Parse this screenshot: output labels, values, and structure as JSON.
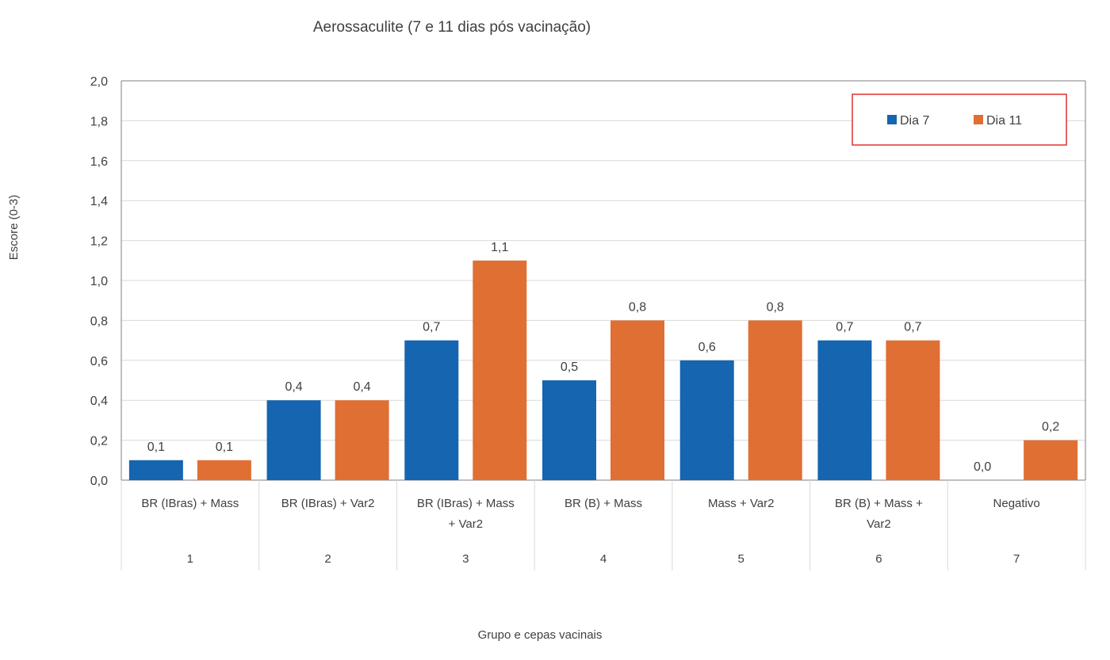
{
  "chart_data": {
    "type": "bar",
    "title": "Aerossaculite (7 e 11 dias pós vacinação)",
    "xlabel": "Grupo e cepas vacinais",
    "ylabel": "Escore (0-3)",
    "ylim": [
      0,
      2.0
    ],
    "ytick_step": 0.2,
    "grid": true,
    "legend_position": "top-right",
    "categories": [
      {
        "label_lines": [
          "BR (IBras) + Mass"
        ],
        "group": "1"
      },
      {
        "label_lines": [
          "BR (IBras) + Var2"
        ],
        "group": "2"
      },
      {
        "label_lines": [
          "BR (IBras) + Mass",
          "+ Var2"
        ],
        "group": "3"
      },
      {
        "label_lines": [
          "BR (B) + Mass"
        ],
        "group": "4"
      },
      {
        "label_lines": [
          "Mass + Var2"
        ],
        "group": "5"
      },
      {
        "label_lines": [
          "BR (B) + Mass +",
          "Var2"
        ],
        "group": "6"
      },
      {
        "label_lines": [
          "Negativo"
        ],
        "group": "7"
      }
    ],
    "series": [
      {
        "name": "Dia 7",
        "color": "#1565b0",
        "values": [
          0.1,
          0.4,
          0.7,
          0.5,
          0.6,
          0.7,
          0.0
        ]
      },
      {
        "name": "Dia 11",
        "color": "#e06f33",
        "values": [
          0.1,
          0.4,
          1.1,
          0.8,
          0.8,
          0.7,
          0.2
        ]
      }
    ],
    "decimal_separator": ","
  },
  "colors": {
    "gridline": "#d9d9d9",
    "axis": "#7f7f7f",
    "legend_border": "#e03030"
  }
}
